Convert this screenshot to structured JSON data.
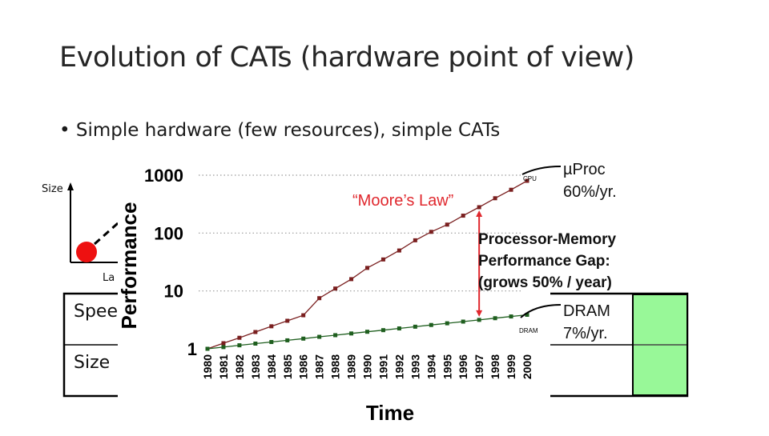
{
  "slide": {
    "title": "Evolution of CATs (hardware point of view)",
    "bullet": "• Simple hardware (few resources), simple CATs"
  },
  "background": {
    "size_axis_label": "Size",
    "partial_label": "La",
    "table_rows": [
      "Spee",
      "Size"
    ]
  },
  "chart_data": {
    "type": "line",
    "x": [
      1980,
      1981,
      1982,
      1983,
      1984,
      1985,
      1986,
      1987,
      1988,
      1989,
      1990,
      1991,
      1992,
      1993,
      1994,
      1995,
      1996,
      1997,
      1998,
      1999,
      2000
    ],
    "xlabel": "Time",
    "ylabel": "Performance",
    "yscale": "log",
    "ylim": [
      1,
      1000
    ],
    "yticks": [
      1,
      10,
      100,
      1000
    ],
    "ytick_labels": [
      "1",
      "10",
      "100",
      "1000"
    ],
    "grid": "dotted horizontal at 10, 100, 1000",
    "series": [
      {
        "name": "CPU",
        "color": "#7a1f1f",
        "values": [
          1,
          1.25,
          1.55,
          1.95,
          2.45,
          3.05,
          3.8,
          7.5,
          11,
          16,
          25,
          35,
          50,
          75,
          105,
          140,
          200,
          280,
          400,
          560,
          800
        ]
      },
      {
        "name": "DRAM",
        "color": "#1f5f1f",
        "values": [
          1,
          1.07,
          1.15,
          1.23,
          1.31,
          1.4,
          1.5,
          1.61,
          1.72,
          1.84,
          1.97,
          2.1,
          2.25,
          2.41,
          2.58,
          2.76,
          2.95,
          3.16,
          3.38,
          3.62,
          3.87
        ]
      }
    ],
    "annotations": {
      "cpu_label": "µProc",
      "cpu_rate": "60%/yr.",
      "dram_label": "DRAM",
      "dram_rate": "7%/yr.",
      "moore": "“Moore’s Law”",
      "gap_line1": "Processor-Memory",
      "gap_line2": "Performance Gap:",
      "gap_line3": "(grows 50% / year)"
    },
    "colors": {
      "moore": "#e0282e",
      "gap_arrow": "#e0282e",
      "green_box": "#98f898"
    }
  }
}
